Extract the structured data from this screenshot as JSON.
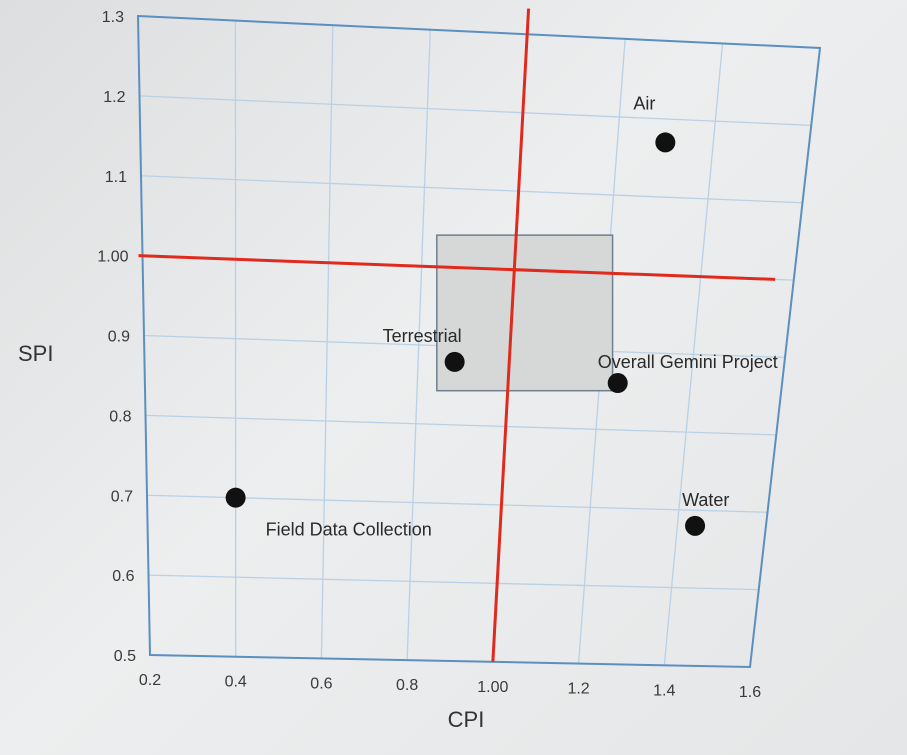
{
  "chart_data": {
    "type": "scatter",
    "xlabel": "CPI",
    "ylabel": "SPI",
    "xlim": [
      0.2,
      1.6
    ],
    "ylim": [
      0.5,
      1.3
    ],
    "x_ticks": [
      "0.2",
      "0.4",
      "0.6",
      "0.8",
      "1.00",
      "1.2",
      "1.4",
      "1.6"
    ],
    "y_ticks": [
      "0.5",
      "0.6",
      "0.7",
      "0.8",
      "0.9",
      "1.00",
      "1.1",
      "1.2",
      "1.3"
    ],
    "grid": true,
    "reference_lines": {
      "x": 1.0,
      "y": 1.0,
      "color": "#e02a1d"
    },
    "highlight_box": {
      "x": [
        0.83,
        1.23
      ],
      "y": [
        0.85,
        1.04
      ]
    },
    "points": [
      {
        "label": "Air",
        "x": 1.3,
        "y": 1.17
      },
      {
        "label": "Terrestrial",
        "x": 0.88,
        "y": 0.88
      },
      {
        "label": "Overall Gemini Project",
        "x": 1.24,
        "y": 0.86
      },
      {
        "label": "Water",
        "x": 1.44,
        "y": 0.68
      },
      {
        "label": "Field Data Collection",
        "x": 0.4,
        "y": 0.7
      }
    ],
    "marker_color": "#111111",
    "gridline_color": "#b9d1e6",
    "frame_color": "#5b8fc0"
  }
}
